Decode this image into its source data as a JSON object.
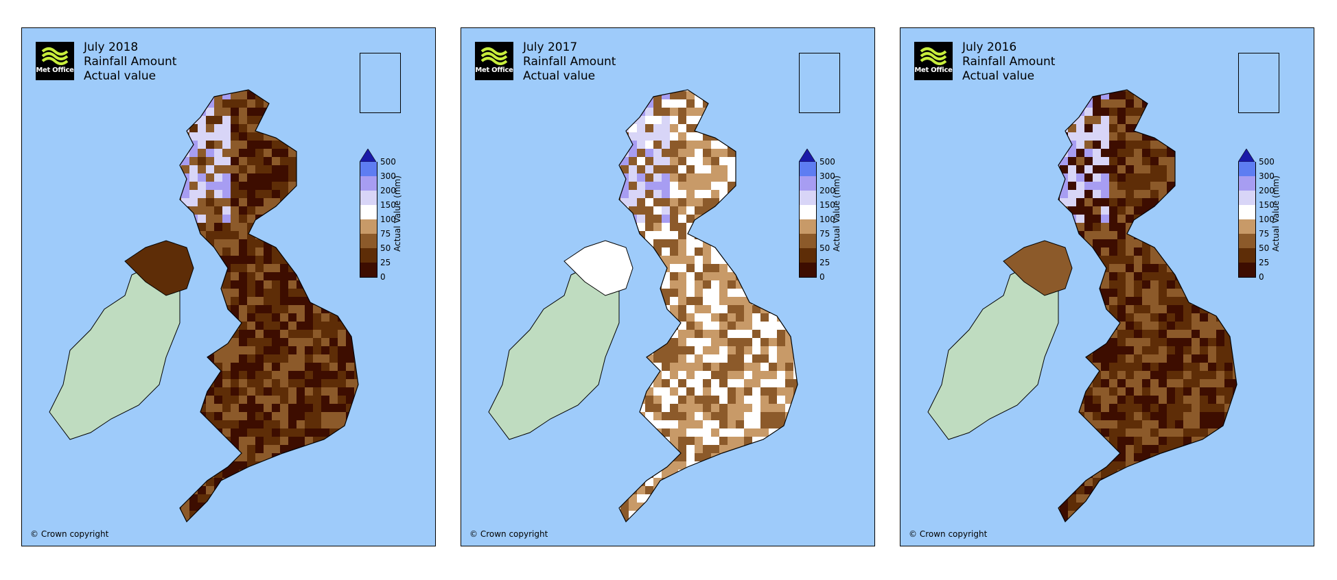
{
  "logo_text": "Met Office",
  "copyright": "© Crown copyright",
  "colors": {
    "sea": "#9ecbfa",
    "ireland": "#bfdcc0",
    "rain_0_25": "#3d0d00",
    "rain_25_50": "#5e2d07",
    "rain_50_75": "#8c5a2a",
    "rain_75_100": "#c89a68",
    "rain_100_150": "#ffffff",
    "rain_150_200": "#d8d5f7",
    "rain_200_300": "#a79df2",
    "rain_300_500": "#5e7df2",
    "rain_500_plus": "#1a1aa8",
    "logo_green": "#c8ee3c"
  },
  "legend": {
    "axis_label": "Actual Value (mm)",
    "ticks": [
      "500",
      "300",
      "200",
      "150",
      "100",
      "75",
      "50",
      "25",
      "0"
    ]
  },
  "panels": [
    {
      "title_line1": "July 2018",
      "title_line2": "Rainfall Amount",
      "title_line3": "Actual value",
      "dominant_rainfall_band": "0–50 mm",
      "dominant_colors": [
        "#3d0d00",
        "#5e2d07",
        "#8c5a2a"
      ]
    },
    {
      "title_line1": "July 2017",
      "title_line2": "Rainfall Amount",
      "title_line3": "Actual value",
      "dominant_rainfall_band": "50–150 mm",
      "dominant_colors": [
        "#c89a68",
        "#ffffff",
        "#8c5a2a"
      ]
    },
    {
      "title_line1": "July 2016",
      "title_line2": "Rainfall Amount",
      "title_line3": "Actual value",
      "dominant_rainfall_band": "25–100 mm",
      "dominant_colors": [
        "#5e2d07",
        "#8c5a2a",
        "#3d0d00"
      ]
    }
  ]
}
